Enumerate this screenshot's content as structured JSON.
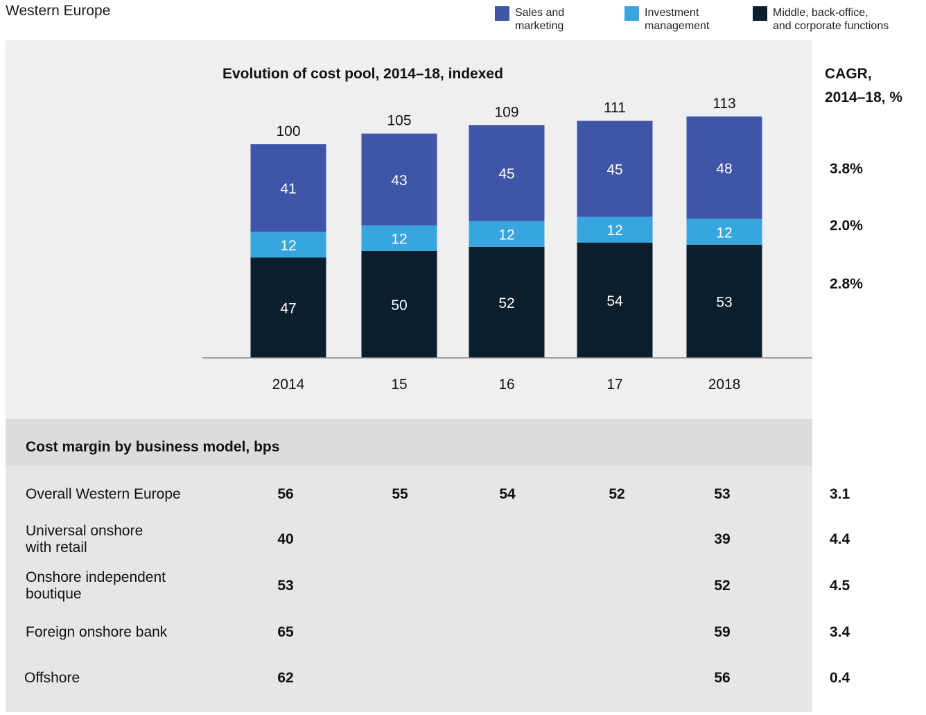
{
  "region": "Western Europe",
  "colors": {
    "sales": "#3f56a8",
    "investment": "#38a6de",
    "middle": "#0b1e2d"
  },
  "legend": [
    {
      "label": "Sales and\nmarketing",
      "color": "#3f56a8"
    },
    {
      "label": "Investment\nmanagement",
      "color": "#38a6de"
    },
    {
      "label": "Middle, back-office,\nand corporate functions",
      "color": "#0b1e2d"
    }
  ],
  "chart_data": {
    "type": "bar",
    "stacked": true,
    "title": "Evolution of cost pool, 2014–18, indexed",
    "categories": [
      "2014",
      "15",
      "16",
      "17",
      "2018"
    ],
    "totals": [
      100,
      105,
      109,
      111,
      113
    ],
    "series": [
      {
        "name": "Middle, back-office, and corporate functions",
        "values": [
          47,
          50,
          52,
          54,
          53
        ],
        "cagr": "2.8%"
      },
      {
        "name": "Investment management",
        "values": [
          12,
          12,
          12,
          12,
          12
        ],
        "cagr": "2.0%"
      },
      {
        "name": "Sales and marketing",
        "values": [
          41,
          43,
          45,
          45,
          48
        ],
        "cagr": "3.8%"
      }
    ],
    "ylim": [
      0,
      120
    ]
  },
  "cagr_header": [
    "CAGR,",
    "2014–18, %"
  ],
  "margins": {
    "title": "Cost margin by business model, bps",
    "rows": [
      {
        "label": "Overall Western Europe",
        "values": [
          "56",
          "55",
          "54",
          "52",
          "53"
        ],
        "cagr": "3.1"
      },
      {
        "label": "Universal onshore\nwith retail",
        "values": [
          "40",
          "",
          "",
          "",
          "39"
        ],
        "cagr": "4.4"
      },
      {
        "label": "Onshore independent\nboutique",
        "values": [
          "53",
          "",
          "",
          "",
          "52"
        ],
        "cagr": "4.5"
      },
      {
        "label": "Foreign onshore bank",
        "values": [
          "65",
          "",
          "",
          "",
          "59"
        ],
        "cagr": "3.4"
      },
      {
        "label": "Offshore",
        "values": [
          "62",
          "",
          "",
          "",
          "56"
        ],
        "cagr": "0.4"
      }
    ]
  }
}
